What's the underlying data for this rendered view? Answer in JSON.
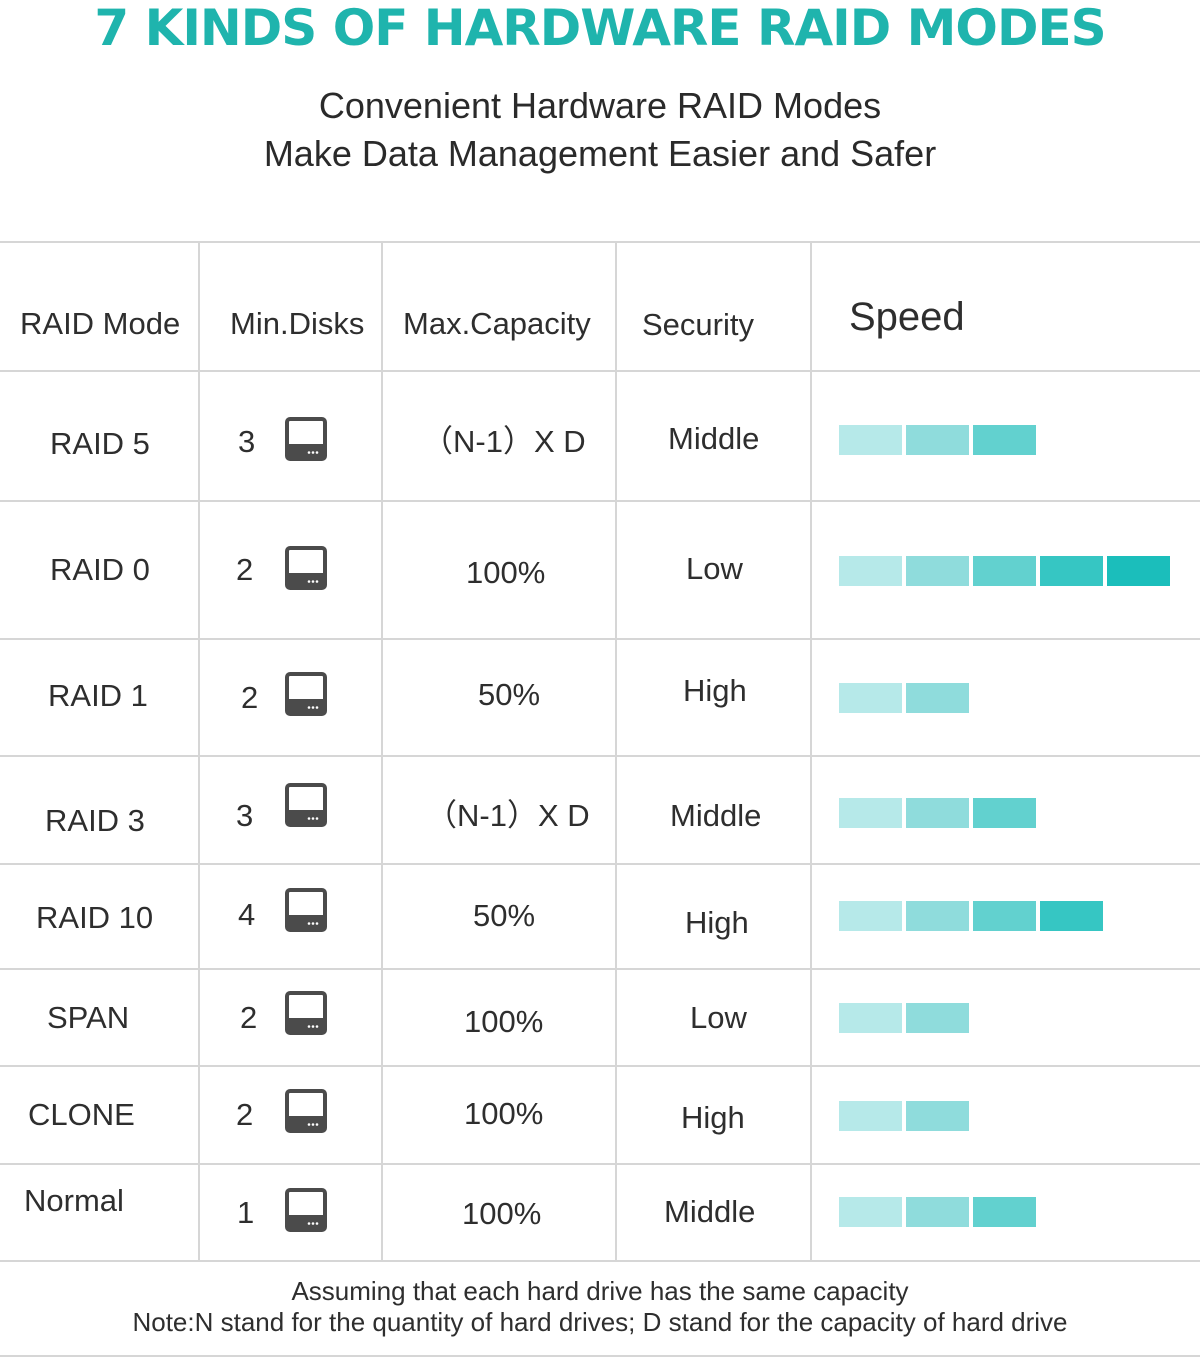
{
  "header": {
    "title": "7 KINDS OF HARDWARE RAID MODES",
    "subtitle_line1": "Convenient Hardware RAID Modes",
    "subtitle_line2": "Make Data Management Easier and Safer"
  },
  "colors": {
    "title": "#1fb4ad",
    "speed_levels": [
      "#b6e9e9",
      "#8fdcdc",
      "#62d1cf",
      "#36c6c3",
      "#1bbebb"
    ],
    "disk_icon": "#4b4b4b",
    "grid": "#d6d6d6"
  },
  "table": {
    "columns": [
      "RAID Mode",
      "Min.Disks",
      "Max.Capacity",
      "Security",
      "Speed"
    ],
    "rows": [
      {
        "mode": "RAID 5",
        "min_disks": "3",
        "max_capacity": "（N-1）X D",
        "security": "Middle",
        "speed": 3
      },
      {
        "mode": "RAID 0",
        "min_disks": "2",
        "max_capacity": "100%",
        "security": "Low",
        "speed": 5
      },
      {
        "mode": "RAID 1",
        "min_disks": "2",
        "max_capacity": "50%",
        "security": "High",
        "speed": 2
      },
      {
        "mode": "RAID 3",
        "min_disks": "3",
        "max_capacity": "（N-1）X D",
        "security": "Middle",
        "speed": 3
      },
      {
        "mode": "RAID 10",
        "min_disks": "4",
        "max_capacity": "50%",
        "security": "High",
        "speed": 4
      },
      {
        "mode": "SPAN",
        "min_disks": "2",
        "max_capacity": "100%",
        "security": "Low",
        "speed": 2
      },
      {
        "mode": "CLONE",
        "min_disks": "2",
        "max_capacity": "100%",
        "security": "High",
        "speed": 2
      },
      {
        "mode": "Normal",
        "min_disks": "1",
        "max_capacity": "100%",
        "security": "Middle",
        "speed": 3
      }
    ],
    "disk_icon": "hard-drive-icon"
  },
  "footer": {
    "note_line1": "Assuming that each hard drive has the same capacity",
    "note_line2": "Note:N stand for the quantity of hard drives; D stand for the capacity of hard drive"
  }
}
